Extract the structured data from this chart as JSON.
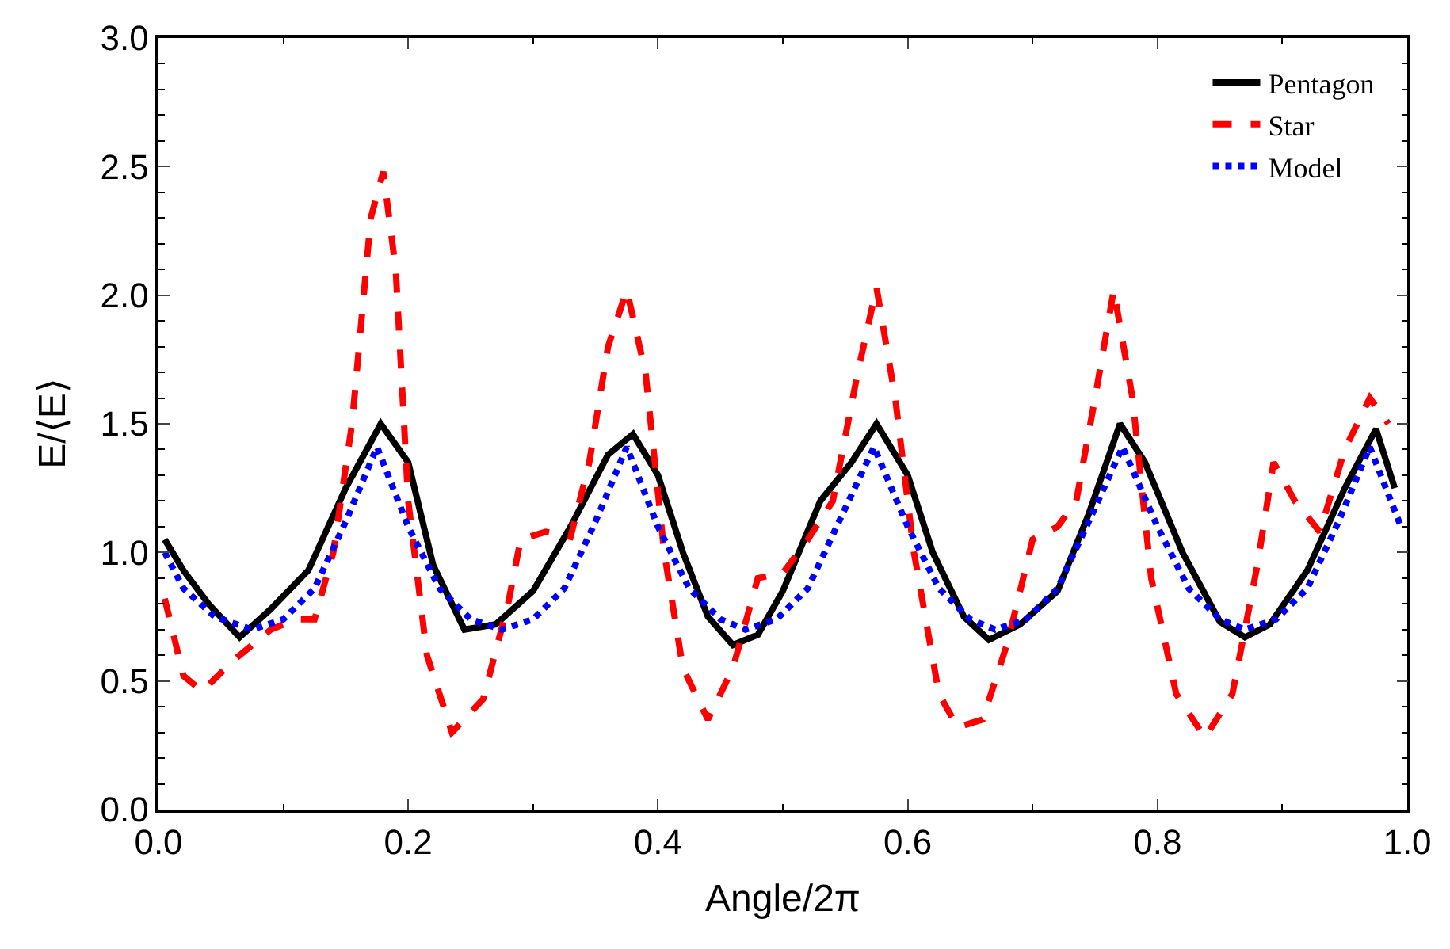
{
  "chart_data": {
    "type": "line",
    "xlabel": "Angle/2π",
    "ylabel": "E/⟨E⟩",
    "xlim": [
      0,
      1
    ],
    "xticks": [
      {
        "value": 0,
        "label": "0.0"
      },
      0.2,
      0.4,
      0.6,
      0.8,
      {
        "value": 1,
        "label": "1.0"
      }
    ],
    "ylim": [
      0,
      3
    ],
    "yticks": [
      {
        "value": 0,
        "label": "0.0"
      },
      0.5,
      {
        "value": 1,
        "label": "1.0"
      },
      1.5,
      {
        "value": 2,
        "label": "2.0"
      },
      2.5,
      {
        "value": 3,
        "label": "3.0"
      }
    ],
    "legend": "top right",
    "series": [
      {
        "name": "Pentagon",
        "color": "#000000",
        "line_style": "solid",
        "x": [
          0.005,
          0.02,
          0.04,
          0.065,
          0.09,
          0.12,
          0.15,
          0.178,
          0.2,
          0.22,
          0.245,
          0.27,
          0.3,
          0.33,
          0.36,
          0.38,
          0.4,
          0.42,
          0.44,
          0.46,
          0.48,
          0.5,
          0.53,
          0.555,
          0.575,
          0.6,
          0.62,
          0.645,
          0.665,
          0.69,
          0.72,
          0.745,
          0.77,
          0.79,
          0.82,
          0.85,
          0.87,
          0.89,
          0.92,
          0.95,
          0.975,
          0.99
        ],
        "values": [
          1.05,
          0.93,
          0.8,
          0.67,
          0.78,
          0.93,
          1.25,
          1.5,
          1.35,
          0.95,
          0.7,
          0.72,
          0.85,
          1.1,
          1.38,
          1.46,
          1.3,
          1.0,
          0.75,
          0.64,
          0.68,
          0.85,
          1.2,
          1.35,
          1.5,
          1.3,
          1.0,
          0.75,
          0.66,
          0.72,
          0.85,
          1.15,
          1.5,
          1.35,
          1.0,
          0.73,
          0.67,
          0.72,
          0.93,
          1.25,
          1.48,
          1.25
        ]
      },
      {
        "name": "Star",
        "color": "#ff0000",
        "line_style": "dashed",
        "x": [
          0.005,
          0.02,
          0.035,
          0.06,
          0.09,
          0.11,
          0.125,
          0.14,
          0.155,
          0.17,
          0.18,
          0.19,
          0.2,
          0.215,
          0.235,
          0.26,
          0.28,
          0.29,
          0.31,
          0.33,
          0.345,
          0.36,
          0.375,
          0.39,
          0.405,
          0.42,
          0.44,
          0.46,
          0.48,
          0.5,
          0.52,
          0.54,
          0.56,
          0.575,
          0.59,
          0.605,
          0.625,
          0.64,
          0.66,
          0.68,
          0.7,
          0.72,
          0.735,
          0.75,
          0.765,
          0.78,
          0.795,
          0.815,
          0.838,
          0.86,
          0.88,
          0.893,
          0.91,
          0.93,
          0.95,
          0.97,
          0.985
        ],
        "values": [
          0.82,
          0.52,
          0.46,
          0.58,
          0.7,
          0.74,
          0.74,
          1.0,
          1.5,
          2.3,
          2.48,
          2.1,
          1.2,
          0.6,
          0.3,
          0.43,
          0.8,
          1.05,
          1.08,
          1.06,
          1.35,
          1.8,
          2.02,
          1.7,
          1.0,
          0.55,
          0.35,
          0.55,
          0.9,
          0.92,
          1.05,
          1.2,
          1.7,
          2.03,
          1.6,
          1.0,
          0.45,
          0.32,
          0.35,
          0.65,
          1.05,
          1.1,
          1.2,
          1.6,
          2.02,
          1.6,
          0.9,
          0.45,
          0.28,
          0.45,
          0.95,
          1.35,
          1.2,
          1.08,
          1.4,
          1.6,
          1.5
        ]
      },
      {
        "name": "Model",
        "color": "#0000ff",
        "line_style": "dotted",
        "x": [
          0.005,
          0.02,
          0.045,
          0.075,
          0.1,
          0.125,
          0.15,
          0.175,
          0.2,
          0.225,
          0.25,
          0.275,
          0.3,
          0.325,
          0.35,
          0.375,
          0.4,
          0.425,
          0.45,
          0.47,
          0.495,
          0.52,
          0.545,
          0.573,
          0.6,
          0.625,
          0.65,
          0.67,
          0.695,
          0.72,
          0.745,
          0.772,
          0.8,
          0.825,
          0.85,
          0.87,
          0.895,
          0.92,
          0.945,
          0.97,
          0.995
        ],
        "values": [
          1.0,
          0.86,
          0.75,
          0.7,
          0.74,
          0.86,
          1.12,
          1.41,
          1.1,
          0.86,
          0.74,
          0.7,
          0.74,
          0.86,
          1.12,
          1.41,
          1.1,
          0.86,
          0.74,
          0.7,
          0.74,
          0.86,
          1.12,
          1.41,
          1.1,
          0.86,
          0.74,
          0.7,
          0.74,
          0.86,
          1.12,
          1.41,
          1.1,
          0.86,
          0.74,
          0.7,
          0.74,
          0.86,
          1.12,
          1.41,
          1.1
        ]
      }
    ]
  }
}
